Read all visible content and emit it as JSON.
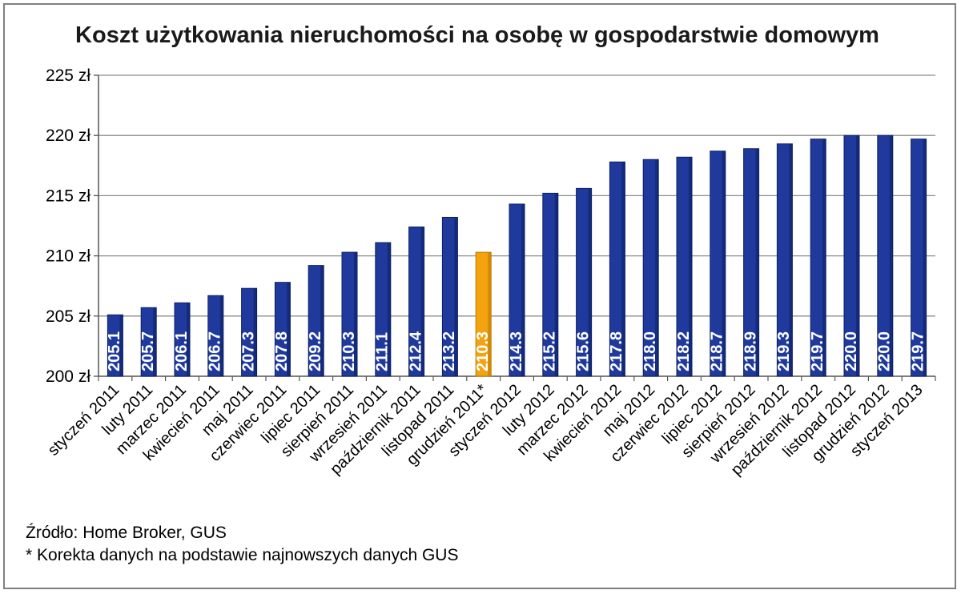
{
  "chart_data": {
    "type": "bar",
    "title": "Koszt użytkowania nieruchomości na osobę w gospodarstwie domowym",
    "categories": [
      "styczeń 2011",
      "luty 2011",
      "marzec 2011",
      "kwiecień 2011",
      "maj 2011",
      "czerwiec 2011",
      "lipiec 2011",
      "sierpień 2011",
      "wrzesień 2011",
      "październik 2011",
      "listopad 2011",
      "grudzień 2011*",
      "styczeń 2012",
      "luty 2012",
      "marzec 2012",
      "kwiecień 2012",
      "maj 2012",
      "czerwiec 2012",
      "lipiec 2012",
      "sierpień 2012",
      "wrzesień 2012",
      "październik 2012",
      "listopad 2012",
      "grudzień 2012",
      "styczeń 2013"
    ],
    "values": [
      205.1,
      205.7,
      206.1,
      206.7,
      207.3,
      207.8,
      209.2,
      210.3,
      211.1,
      212.4,
      213.2,
      210.3,
      214.3,
      215.2,
      215.6,
      217.8,
      218.0,
      218.2,
      218.7,
      218.9,
      219.3,
      219.7,
      220.0,
      220.0,
      219.7
    ],
    "data_labels": [
      "205.1",
      "205.7",
      "206.1",
      "206.7",
      "207.3",
      "207.8",
      "209.2",
      "210.3",
      "211.1",
      "212.4",
      "213.2",
      "210.3",
      "214.3",
      "215.2",
      "215.6",
      "217.8",
      "218.0",
      "218.2",
      "218.7",
      "218.9",
      "219.3",
      "219.7",
      "220.0",
      "220.0",
      "219.7"
    ],
    "highlight_index": 11,
    "ylim": [
      200,
      225
    ],
    "yticks": [
      200,
      205,
      210,
      215,
      220,
      225
    ],
    "ytick_labels": [
      "200 zł",
      "205 zł",
      "210 zł",
      "215 zł",
      "220 zł",
      "225 zł"
    ],
    "grid": true,
    "colors": {
      "bar": "#1f3a9c",
      "bar_dark": "#0d1f66",
      "highlight": "#f2a30f",
      "highlight_dark": "#c07a00",
      "grid": "#8c8c8c"
    }
  },
  "source": "Źródło: Home Broker, GUS",
  "footnote": "* Korekta danych na podstawie najnowszych danych GUS"
}
